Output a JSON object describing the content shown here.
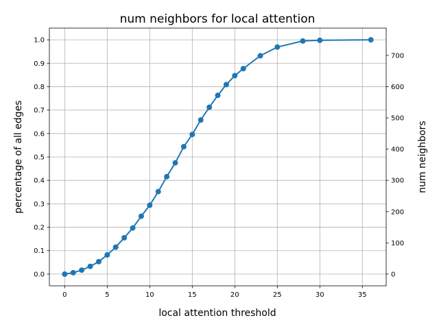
{
  "chart_data": {
    "type": "line",
    "title": "num neighbors for local attention",
    "xlabel": "local attention threshold",
    "ylabel": "percentage of all edges",
    "y2label": "num neighbors",
    "xlim": [
      -1.8,
      37.8
    ],
    "ylim": [
      -0.05,
      1.05
    ],
    "y2lim": [
      -37.5,
      787.5
    ],
    "xticks": [
      "0",
      "5",
      "10",
      "15",
      "20",
      "25",
      "30",
      "35"
    ],
    "yticks": [
      "0.0",
      "0.1",
      "0.2",
      "0.3",
      "0.4",
      "0.5",
      "0.6",
      "0.7",
      "0.8",
      "0.9",
      "1.0"
    ],
    "y2ticks": [
      "0",
      "100",
      "200",
      "300",
      "400",
      "500",
      "600",
      "700"
    ],
    "grid": true,
    "color": "#1f77b4",
    "series": [
      {
        "x": [
          0,
          1,
          2,
          3,
          4,
          5,
          6,
          7,
          8,
          9,
          10,
          11,
          12,
          13,
          14,
          15,
          16,
          17,
          18,
          19,
          20,
          21,
          23,
          25,
          28,
          30,
          36
        ],
        "values": [
          0.0,
          0.006,
          0.017,
          0.033,
          0.053,
          0.082,
          0.115,
          0.155,
          0.197,
          0.247,
          0.294,
          0.352,
          0.416,
          0.475,
          0.544,
          0.596,
          0.658,
          0.712,
          0.763,
          0.809,
          0.847,
          0.877,
          0.932,
          0.969,
          0.995,
          0.998,
          1.0
        ]
      }
    ]
  }
}
